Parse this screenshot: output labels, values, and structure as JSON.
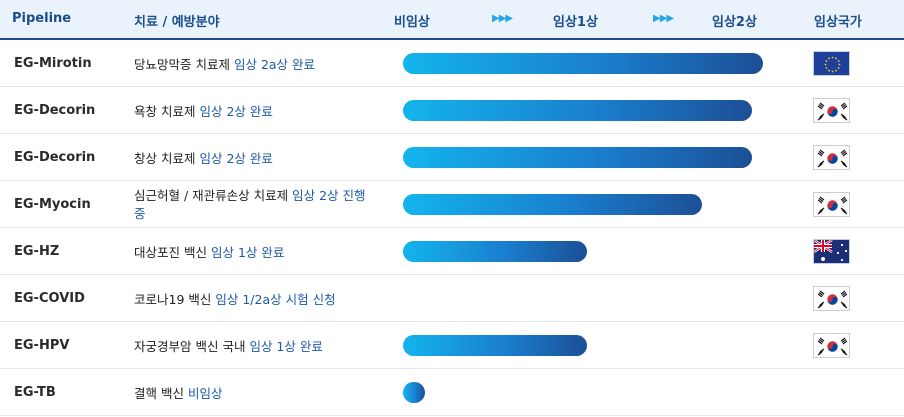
{
  "header": {
    "pipeline": "Pipeline",
    "area": "치료 / 예방분야",
    "preclinical": "비임상",
    "phase1": "임상1상",
    "phase2": "임상2상",
    "country": "임상국가",
    "arrow": "▶▶▶"
  },
  "rows": [
    {
      "name": "EG-Mirotin",
      "desc_plain": "당뇨망막증 치료제",
      "desc_highlight": "임상 2a상 완료",
      "progress_pct": 100,
      "country": "EU",
      "flag_icon": "eu-flag-icon"
    },
    {
      "name": "EG-Decorin",
      "desc_plain": "욕창 치료제",
      "desc_highlight": "임상 2상 완료",
      "progress_pct": 97,
      "country": "KR",
      "flag_icon": "korea-flag-icon"
    },
    {
      "name": "EG-Decorin",
      "desc_plain": "창상 치료제",
      "desc_highlight": "임상 2상 완료",
      "progress_pct": 97,
      "country": "KR",
      "flag_icon": "korea-flag-icon"
    },
    {
      "name": "EG-Myocin",
      "desc_plain": "심근허혈 / 재관류손상 치료제",
      "desc_highlight": "임상 2상 진행 중",
      "progress_pct": 83,
      "country": "KR",
      "flag_icon": "korea-flag-icon"
    },
    {
      "name": "EG-HZ",
      "desc_plain": "대상포진 백신",
      "desc_highlight": "임상 1상 완료",
      "progress_pct": 51,
      "country": "AU",
      "flag_icon": "australia-flag-icon"
    },
    {
      "name": "EG-COVID",
      "desc_plain": "코로나19 백신",
      "desc_highlight": "임상 1/2a상 시험 신청",
      "progress_pct": 0,
      "country": "KR",
      "flag_icon": "korea-flag-icon"
    },
    {
      "name": "EG-HPV",
      "desc_plain": "자궁경부암 백신 국내",
      "desc_highlight": "임상 1상 완료",
      "progress_pct": 51,
      "country": "KR",
      "flag_icon": "korea-flag-icon"
    },
    {
      "name": "EG-TB",
      "desc_plain": "결핵 백신",
      "desc_highlight": "비임상",
      "progress_pct": 6,
      "country": "",
      "flag_icon": ""
    }
  ]
}
